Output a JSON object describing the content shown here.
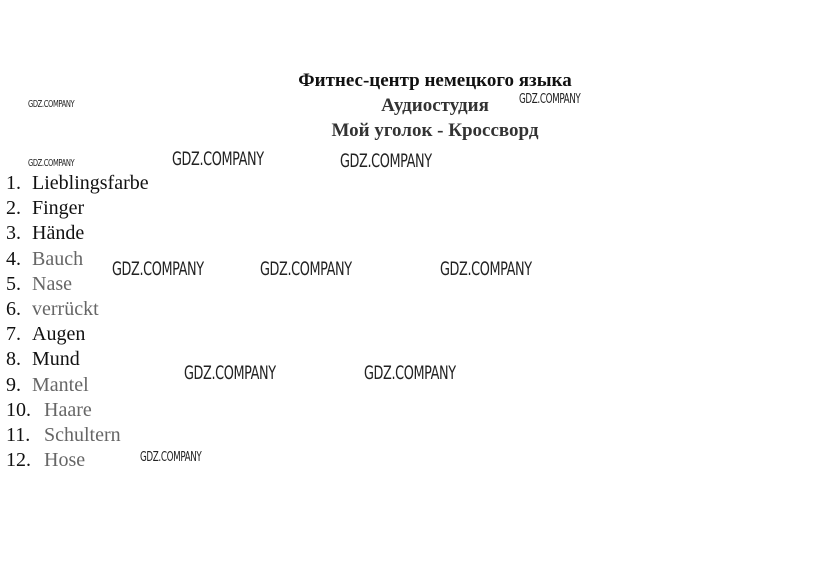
{
  "header": {
    "line1": "Фитнес-центр немецкого языка",
    "line2": "Аудиостудия",
    "line3": "Мой уголок - Кроссворд"
  },
  "items": [
    {
      "num": "1.",
      "word": "Lieblingsfarbe"
    },
    {
      "num": "2.",
      "word": "Finger"
    },
    {
      "num": "3.",
      "word": "Hände"
    },
    {
      "num": "4.",
      "word": "Bauch"
    },
    {
      "num": "5.",
      "word": "Nase"
    },
    {
      "num": "6.",
      "word": "verrückt"
    },
    {
      "num": "7.",
      "word": "Augen"
    },
    {
      "num": "8.",
      "word": "Mund"
    },
    {
      "num": "9.",
      "word": "Mantel"
    },
    {
      "num": "10.",
      "word": "Haare"
    },
    {
      "num": "11.",
      "word": "Schultern"
    },
    {
      "num": "12.",
      "word": "Hose"
    }
  ],
  "watermark": "GDZ.COMPANY"
}
